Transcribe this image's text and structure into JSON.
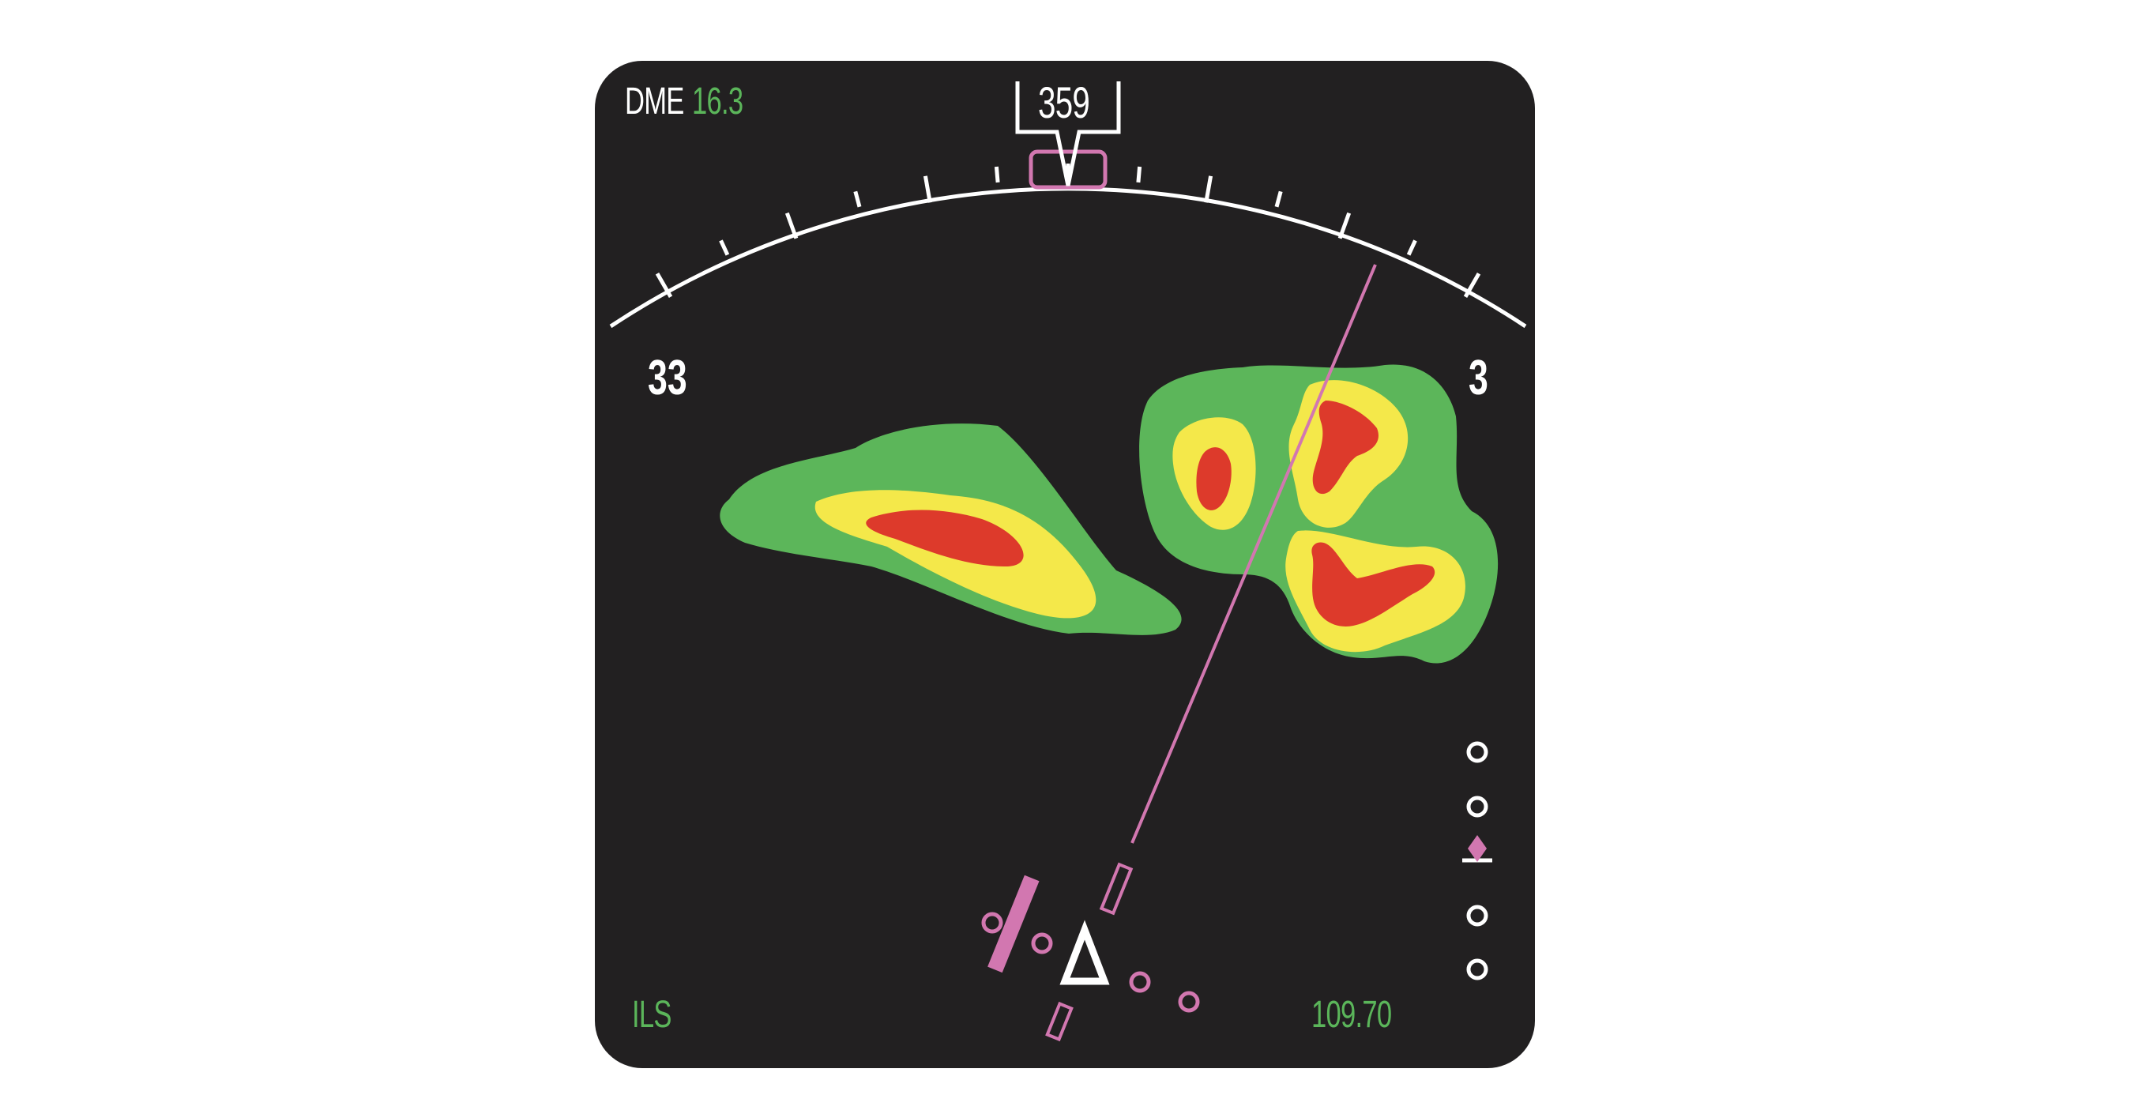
{
  "heading_box": {
    "value": "359"
  },
  "dme": {
    "label": "DME",
    "value": "16.3"
  },
  "compass": {
    "left_label": "33",
    "right_label": "3"
  },
  "bottom_left": {
    "mode": "ILS"
  },
  "bottom_right": {
    "frequency": "109.70"
  },
  "colors": {
    "background": "#222021",
    "white": "#ffffff",
    "magenta": "#d277b0",
    "green_text": "#5bb55a",
    "weather_green": "#5cb65a",
    "weather_yellow": "#f4e84a",
    "weather_red": "#dd3a2b"
  },
  "glideslope": {
    "deviation_dots": 4,
    "pointer_symbol": "magenta-diamond"
  },
  "icons": [
    "aircraft-symbol-icon",
    "selected-heading-bug-icon",
    "course-pointer-icon",
    "glideslope-diamond-icon"
  ]
}
